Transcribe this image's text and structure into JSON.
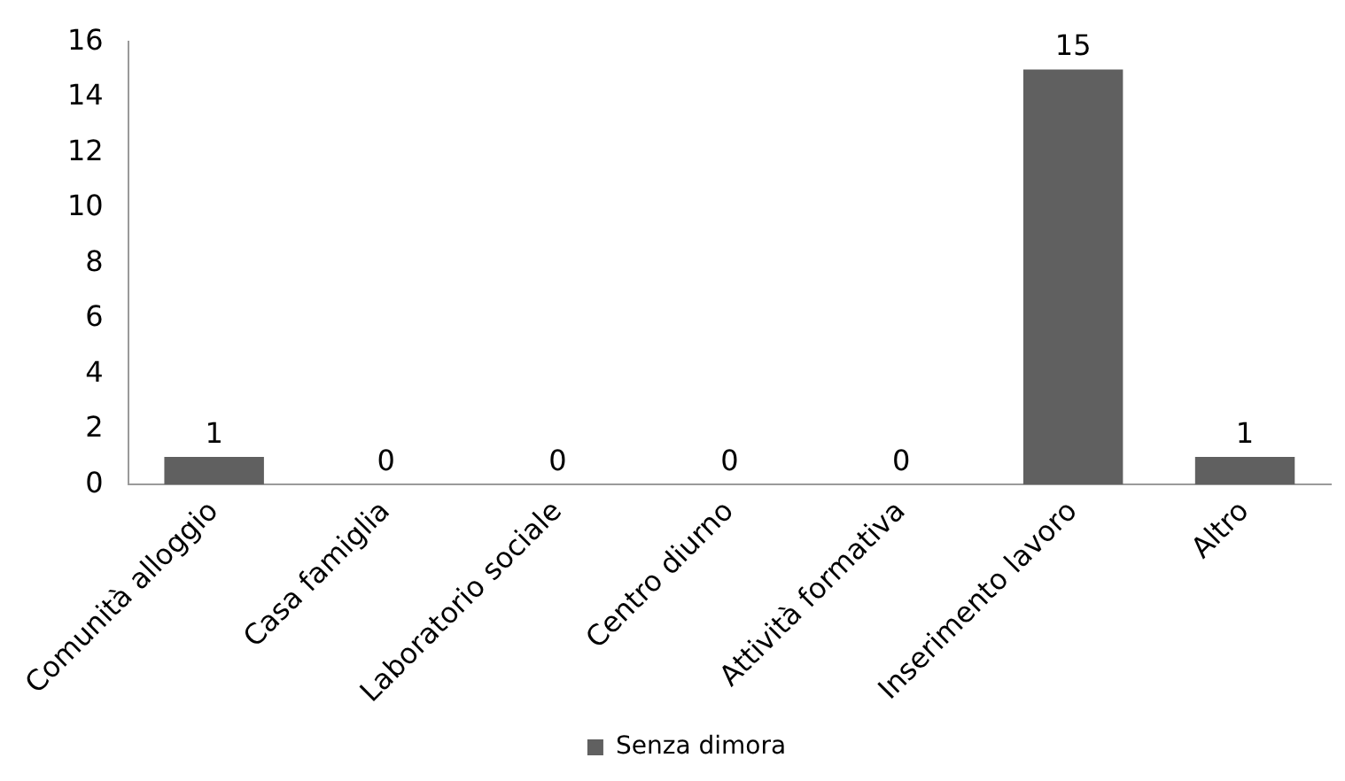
{
  "chart_data": {
    "type": "bar",
    "categories": [
      "Comunità alloggio",
      "Casa famiglia",
      "Laboratorio sociale",
      "Centro diurno",
      "Attività formativa",
      "Inserimento lavoro",
      "Altro"
    ],
    "series": [
      {
        "name": "Senza dimora",
        "color": "#606060",
        "values": [
          1,
          0,
          0,
          0,
          0,
          15,
          1
        ]
      }
    ],
    "ylim": [
      0,
      16
    ],
    "yticks": [
      0,
      2,
      4,
      6,
      8,
      10,
      12,
      14,
      16
    ],
    "grid": false,
    "legend": "bottom",
    "data_labels": true
  }
}
